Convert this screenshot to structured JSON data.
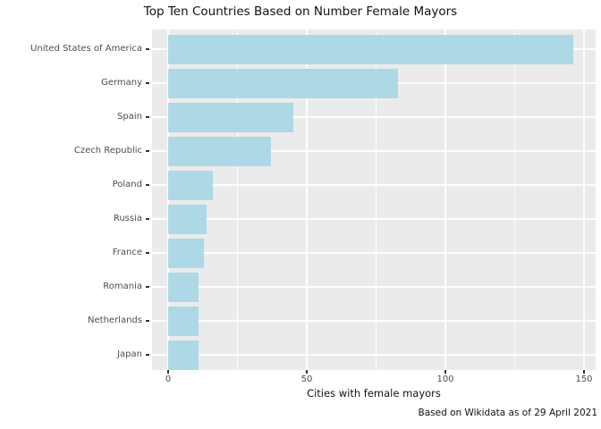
{
  "title": "Top Ten Countries Based on Number Female Mayors",
  "xlabel": "Cities with female mayors",
  "caption": "Based on Wikidata as of 29 April 2021",
  "chart_data": {
    "type": "bar",
    "orientation": "horizontal",
    "title": "Top Ten Countries Based on Number Female Mayors",
    "xlabel": "Cities with female mayors",
    "ylabel": "",
    "caption": "Based on Wikidata as of 29 April 2021",
    "categories": [
      "United States of America",
      "Germany",
      "Spain",
      "Czech Republic",
      "Poland",
      "Russia",
      "France",
      "Romania",
      "Netherlands",
      "Japan"
    ],
    "values": [
      146,
      83,
      45,
      37,
      16,
      14,
      13,
      11,
      11,
      11
    ],
    "xlim": [
      0,
      150
    ],
    "x_ticks": [
      0,
      50,
      100,
      150
    ],
    "x_minor_ticks": [
      25,
      75,
      125
    ],
    "grid": "white on gray panel",
    "legend": false,
    "bar_color": "#ADD8E6",
    "panel_bg": "#EBEBEB",
    "grid_color": "#FFFFFF",
    "axis_text_color": "#4D4D4D",
    "tick_color": "#333333"
  }
}
